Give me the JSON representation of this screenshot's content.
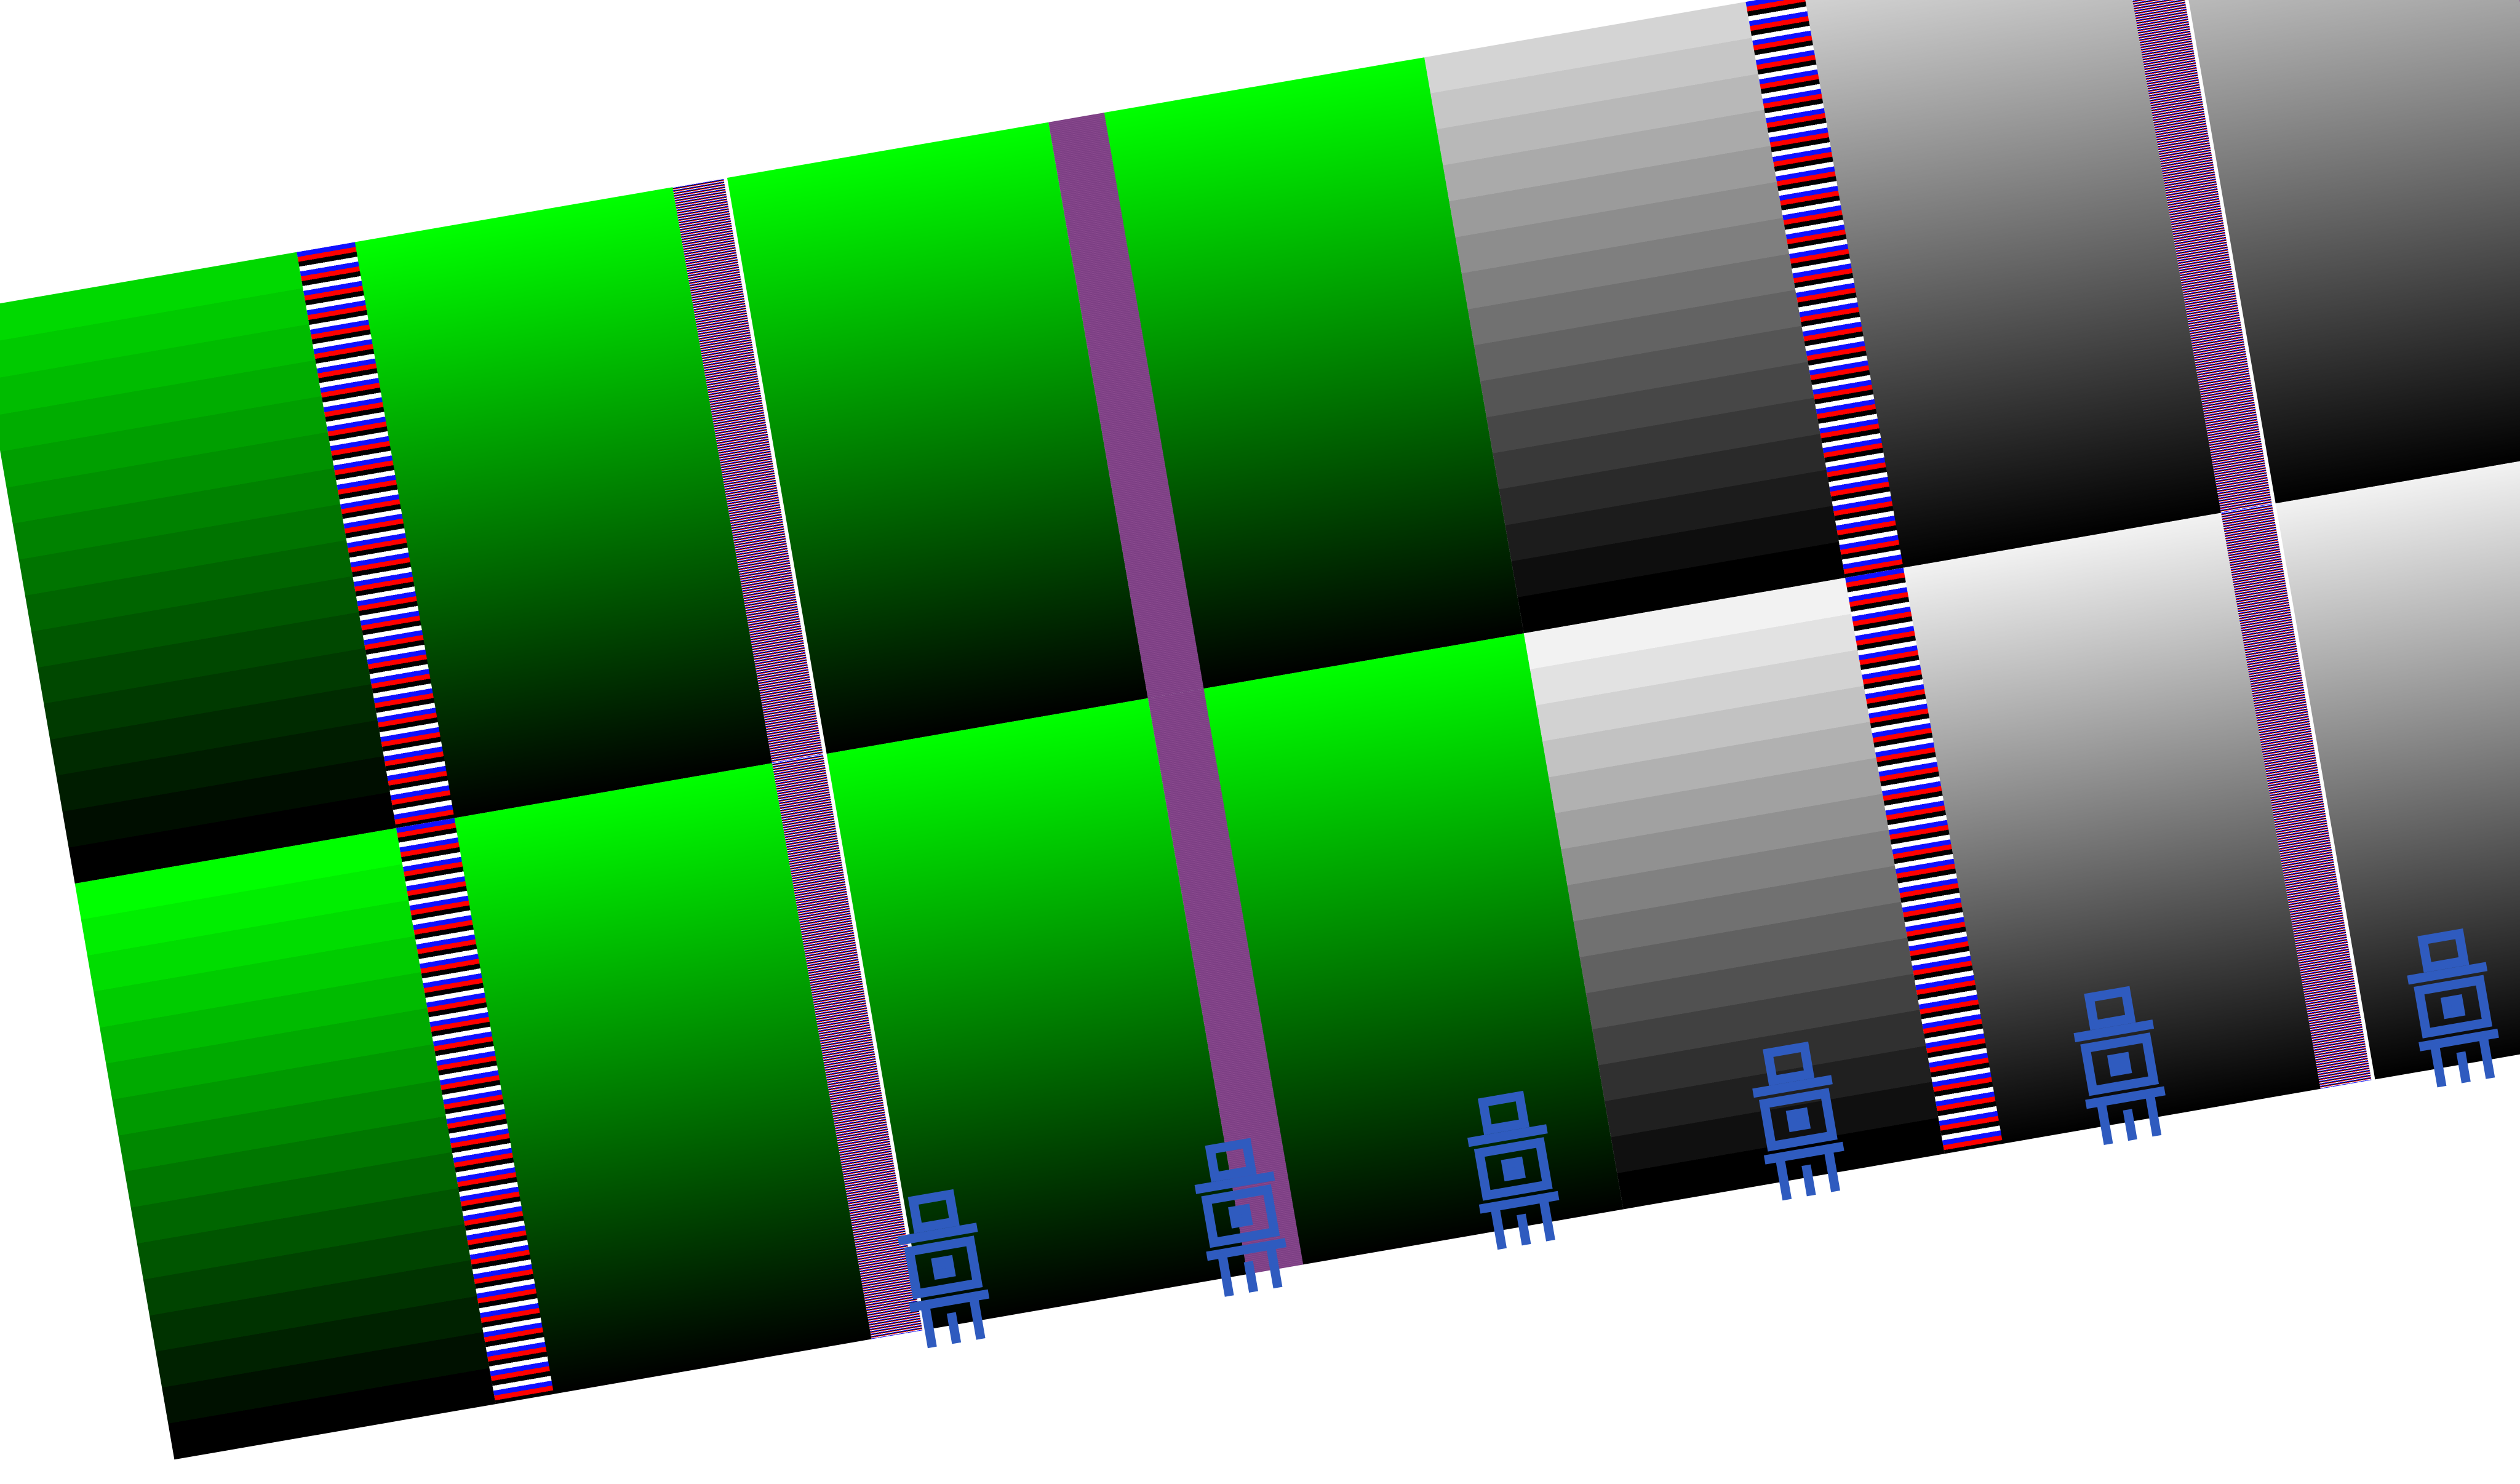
{
  "colors": {
    "green": "#00ff00",
    "white": "#ffffff",
    "black": "#000000",
    "divider_purple": "#7c3f84",
    "divider_blue": "#1010ff",
    "divider_red": "#ff0000",
    "marker_blue": "#2f5bbf"
  },
  "ramp_sequence": [
    "green-stepped",
    "green-smooth",
    "green-smooth",
    "green-smooth",
    "gray-stepped",
    "gray-smooth",
    "gray-smooth",
    "gray-smooth"
  ],
  "ramp_steps": 16,
  "divider_sequence": [
    "coarse",
    "fine",
    "solid",
    "none",
    "coarse",
    "fine",
    "solid"
  ],
  "markers": [
    {
      "icon": "figure-marker-icon"
    },
    {
      "icon": "figure-marker-icon"
    },
    {
      "icon": "figure-marker-icon"
    },
    {
      "icon": "figure-marker-icon"
    },
    {
      "icon": "figure-marker-icon"
    },
    {
      "icon": "figure-marker-icon"
    }
  ]
}
